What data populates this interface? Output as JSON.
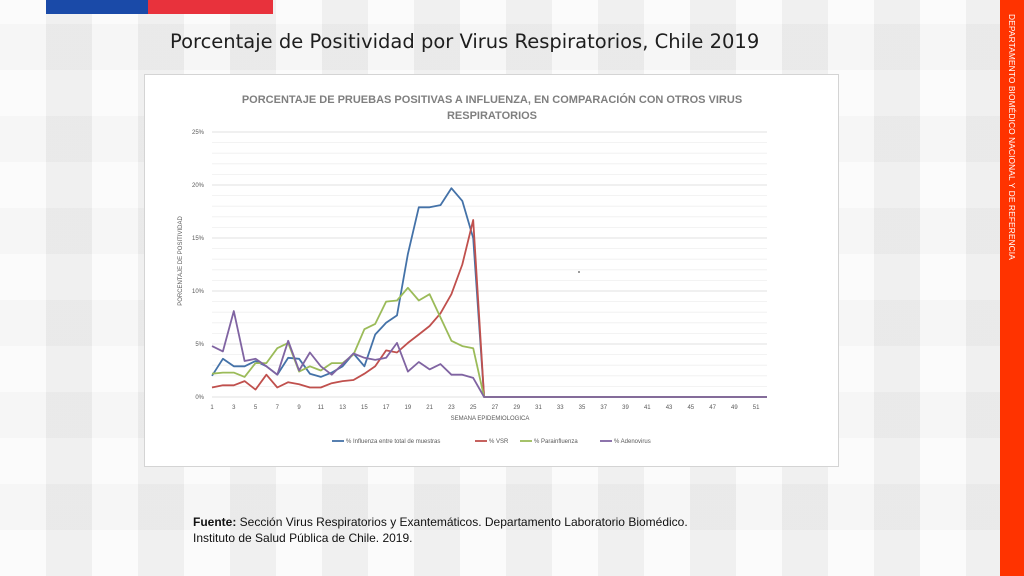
{
  "page": {
    "title": "Porcentaje de Positividad por Virus Respiratorios, Chile 2019",
    "side_label": "DEPARTAMENTO BIOMÉDICO NACIONAL Y DE REFERENCIA",
    "source_label": "Fuente:",
    "source_line1": " Sección Virus Respiratorios y Exantemáticos. Departamento Laboratorio Biomédico.",
    "source_line2": "Instituto de Salud Pública de Chile. 2019."
  },
  "colors": {
    "flag_blue": "#1a4aa8",
    "flag_red": "#e8323c",
    "side_bar": "#ff3300"
  },
  "chart_data": {
    "type": "line",
    "title_line1": "PORCENTAJE DE PRUEBAS POSITIVAS A INFLUENZA, EN COMPARACIÓN CON OTROS VIRUS",
    "title_line2": "RESPIRATORIOS",
    "xlabel": "SEMANA EPIDEMIOLOGICA",
    "ylabel": "PORCENTAJE DE POSITIVIDAD",
    "xlim": [
      1,
      52
    ],
    "ylim": [
      0,
      25
    ],
    "yticks": [
      "0%",
      "5%",
      "10%",
      "15%",
      "20%",
      "25%"
    ],
    "xticks": [
      "1",
      "3",
      "5",
      "7",
      "9",
      "11",
      "13",
      "15",
      "17",
      "19",
      "21",
      "23",
      "25",
      "27",
      "29",
      "31",
      "33",
      "35",
      "37",
      "39",
      "41",
      "43",
      "45",
      "47",
      "49",
      "51"
    ],
    "grid": true,
    "legend_position": "bottom",
    "series": [
      {
        "name": "% Influenza entre total de muestras",
        "color": "#4472a8",
        "values": [
          2.0,
          3.6,
          2.9,
          2.9,
          3.4,
          2.9,
          2.1,
          3.7,
          3.6,
          2.2,
          1.9,
          2.3,
          2.9,
          4.1,
          2.9,
          5.9,
          7.0,
          7.7,
          13.5,
          17.9,
          17.9,
          18.1,
          19.7,
          18.5,
          15.0,
          0,
          0,
          0,
          0,
          0,
          0,
          0,
          0,
          0,
          0,
          0,
          0,
          0,
          0,
          0,
          0,
          0,
          0,
          0,
          0,
          0,
          0,
          0,
          0,
          0,
          0,
          0
        ]
      },
      {
        "name": "% VSR",
        "color": "#c0504d",
        "values": [
          0.9,
          1.1,
          1.1,
          1.5,
          0.7,
          2.1,
          0.9,
          1.4,
          1.2,
          0.9,
          0.9,
          1.3,
          1.5,
          1.6,
          2.2,
          2.9,
          4.4,
          4.2,
          5.1,
          5.9,
          6.7,
          7.9,
          9.7,
          12.5,
          16.7,
          0,
          0,
          0,
          0,
          0,
          0,
          0,
          0,
          0,
          0,
          0,
          0,
          0,
          0,
          0,
          0,
          0,
          0,
          0,
          0,
          0,
          0,
          0,
          0,
          0,
          0,
          0
        ]
      },
      {
        "name": "% Parainfluenza",
        "color": "#9bbb59",
        "values": [
          2.2,
          2.3,
          2.3,
          1.9,
          3.2,
          3.2,
          4.6,
          5.1,
          2.4,
          2.9,
          2.5,
          3.2,
          3.2,
          4.0,
          6.4,
          6.9,
          9.0,
          9.1,
          10.3,
          9.1,
          9.7,
          7.5,
          5.3,
          4.8,
          4.6,
          0,
          0,
          0,
          0,
          0,
          0,
          0,
          0,
          0,
          0,
          0,
          0,
          0,
          0,
          0,
          0,
          0,
          0,
          0,
          0,
          0,
          0,
          0,
          0,
          0,
          0,
          0
        ]
      },
      {
        "name": "% Adenovirus",
        "color": "#8064a2",
        "values": [
          4.8,
          4.3,
          8.1,
          3.4,
          3.6,
          2.9,
          2.1,
          5.3,
          2.5,
          4.2,
          2.9,
          2.1,
          3.1,
          4.1,
          3.7,
          3.5,
          3.7,
          5.1,
          2.4,
          3.3,
          2.6,
          3.1,
          2.1,
          2.1,
          1.8,
          0,
          0,
          0,
          0,
          0,
          0,
          0,
          0,
          0,
          0,
          0,
          0,
          0,
          0,
          0,
          0,
          0,
          0,
          0,
          0,
          0,
          0,
          0,
          0,
          0,
          0,
          0
        ]
      }
    ]
  }
}
